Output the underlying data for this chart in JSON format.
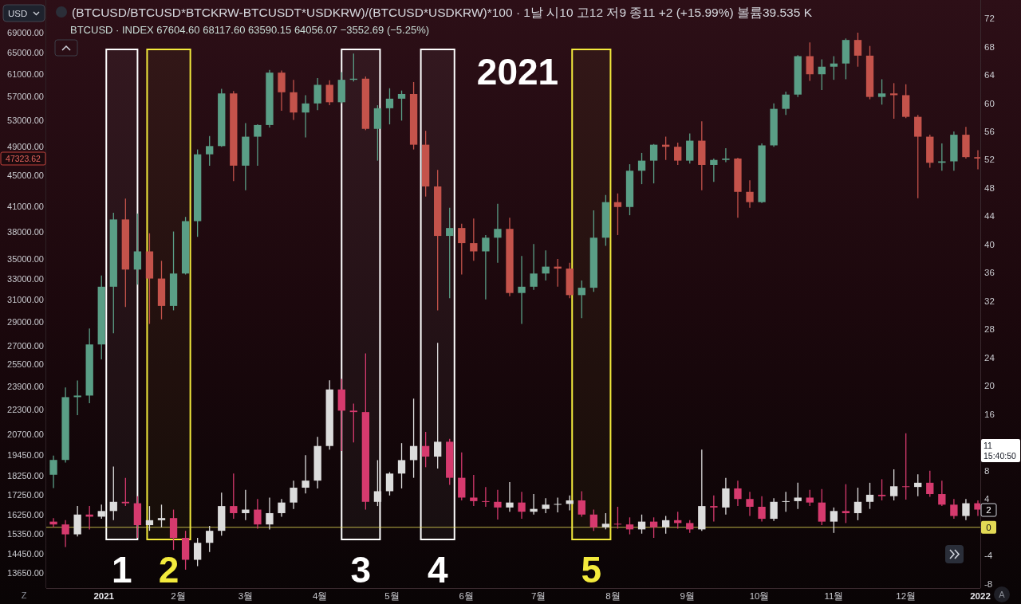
{
  "chart_data": {
    "type": "candlestick",
    "title": "(BTCUSD/BTCUSD*BTCKRW-BTCUSDT*USDKRW)/(BTCUSD*USDKRW)*100 · 1날 시10 고12 저9 종11 +2 (+15.99%) 볼륨39.535 K",
    "subtitle": "BTCUSD · INDEX 67604.60 68117.60 63590.15 64056.07 −3552.69 (−5.25%)",
    "x": [
      "2020-12-11",
      "2020-12-16",
      "2020-12-21",
      "2020-12-26",
      "2020-12-31",
      "2021-01-05",
      "2021-01-10",
      "2021-01-15",
      "2021-01-20",
      "2021-01-25",
      "2021-01-30",
      "2021-02-04",
      "2021-02-09",
      "2021-02-14",
      "2021-02-19",
      "2021-02-24",
      "2021-03-01",
      "2021-03-06",
      "2021-03-11",
      "2021-03-16",
      "2021-03-21",
      "2021-03-26",
      "2021-03-31",
      "2021-04-05",
      "2021-04-10",
      "2021-04-15",
      "2021-04-20",
      "2021-04-25",
      "2021-04-30",
      "2021-05-05",
      "2021-05-10",
      "2021-05-15",
      "2021-05-20",
      "2021-05-25",
      "2021-05-30",
      "2021-06-04",
      "2021-06-09",
      "2021-06-14",
      "2021-06-19",
      "2021-06-24",
      "2021-06-29",
      "2021-07-04",
      "2021-07-09",
      "2021-07-14",
      "2021-07-19",
      "2021-07-24",
      "2021-07-29",
      "2021-08-03",
      "2021-08-08",
      "2021-08-13",
      "2021-08-18",
      "2021-08-23",
      "2021-08-28",
      "2021-09-02",
      "2021-09-07",
      "2021-09-12",
      "2021-09-17",
      "2021-09-22",
      "2021-09-27",
      "2021-10-02",
      "2021-10-07",
      "2021-10-12",
      "2021-10-17",
      "2021-10-22",
      "2021-10-27",
      "2021-11-01",
      "2021-11-06",
      "2021-11-11",
      "2021-11-16",
      "2021-11-21",
      "2021-11-26",
      "2021-12-01",
      "2021-12-06",
      "2021-12-11",
      "2021-12-16",
      "2021-12-21",
      "2021-12-26",
      "2021-12-31"
    ],
    "series": [
      {
        "ohlc": [
          [
            18320,
            19400,
            17600,
            19150
          ],
          [
            19150,
            23800,
            19000,
            23120
          ],
          [
            23120,
            24300,
            21900,
            23230
          ],
          [
            23230,
            28400,
            22700,
            27080
          ],
          [
            27080,
            33300,
            25900,
            32200
          ],
          [
            32200,
            40200,
            28000,
            39400
          ],
          [
            39400,
            41950,
            30300,
            33900
          ],
          [
            33900,
            40100,
            32400,
            35800
          ],
          [
            35800,
            37800,
            28800,
            33000
          ],
          [
            33000,
            34800,
            29200,
            30400
          ],
          [
            30400,
            38000,
            30000,
            33500
          ],
          [
            33500,
            39700,
            33400,
            39200
          ],
          [
            39200,
            48600,
            37400,
            47900
          ],
          [
            47900,
            50600,
            46300,
            49100
          ],
          [
            49100,
            58300,
            49000,
            57500
          ],
          [
            57500,
            57900,
            44200,
            46300
          ],
          [
            46300,
            52600,
            43000,
            50500
          ],
          [
            50500,
            52400,
            46300,
            52300
          ],
          [
            52300,
            61700,
            51900,
            61200
          ],
          [
            61200,
            61600,
            54600,
            57700
          ],
          [
            57700,
            59900,
            53100,
            54300
          ],
          [
            54300,
            57200,
            50400,
            55800
          ],
          [
            55800,
            60200,
            54700,
            59000
          ],
          [
            59000,
            59800,
            55500,
            56000
          ],
          [
            56000,
            61300,
            55800,
            59900
          ],
          [
            59900,
            64800,
            59600,
            60100
          ],
          [
            60100,
            60500,
            51500,
            51700
          ],
          [
            51700,
            55500,
            47000,
            55000
          ],
          [
            55000,
            58400,
            52400,
            56600
          ],
          [
            56600,
            58000,
            53000,
            57400
          ],
          [
            57400,
            59500,
            48600,
            49300
          ],
          [
            49300,
            51400,
            42200,
            43500
          ],
          [
            43500,
            45700,
            30000,
            37500
          ],
          [
            37500,
            40800,
            31100,
            38400
          ],
          [
            38400,
            38900,
            33400,
            36700
          ],
          [
            36700,
            39500,
            34800,
            35800
          ],
          [
            35800,
            37600,
            31000,
            37300
          ],
          [
            37300,
            41300,
            34600,
            38300
          ],
          [
            38300,
            39600,
            31300,
            31600
          ],
          [
            31600,
            35300,
            28800,
            32200
          ],
          [
            32200,
            36600,
            31900,
            33500
          ],
          [
            33500,
            35900,
            32800,
            34200
          ],
          [
            34200,
            35000,
            32200,
            34000
          ],
          [
            34000,
            34600,
            31100,
            31400
          ],
          [
            31400,
            32800,
            29300,
            32100
          ],
          [
            32100,
            40500,
            31700,
            37300
          ],
          [
            37300,
            42400,
            36400,
            41500
          ],
          [
            41500,
            42600,
            37600,
            40900
          ],
          [
            40900,
            46500,
            39900,
            45600
          ],
          [
            45600,
            48100,
            43800,
            47000
          ],
          [
            47000,
            49400,
            43900,
            49300
          ],
          [
            49300,
            50500,
            47100,
            49000
          ],
          [
            49000,
            49600,
            46400,
            47000
          ],
          [
            47000,
            51000,
            46600,
            49900
          ],
          [
            49900,
            52900,
            43000,
            46400
          ],
          [
            46400,
            47300,
            44100,
            47100
          ],
          [
            47100,
            48800,
            46800,
            47300
          ],
          [
            47300,
            47400,
            39600,
            42800
          ],
          [
            42800,
            44300,
            40800,
            41500
          ],
          [
            41500,
            49500,
            41400,
            49200
          ],
          [
            49200,
            55800,
            49000,
            54900
          ],
          [
            54900,
            57800,
            53900,
            57300
          ],
          [
            57300,
            64500,
            56900,
            64300
          ],
          [
            64300,
            67000,
            59700,
            60900
          ],
          [
            60900,
            63700,
            58100,
            62300
          ],
          [
            62300,
            64300,
            59900,
            62900
          ],
          [
            62900,
            67800,
            60000,
            67500
          ],
          [
            67500,
            69000,
            62300,
            64400
          ],
          [
            64400,
            66300,
            56500,
            56900
          ],
          [
            56900,
            60000,
            55600,
            57500
          ],
          [
            57500,
            59300,
            53300,
            57200
          ],
          [
            57200,
            59100,
            53400,
            53600
          ],
          [
            53600,
            53900,
            42000,
            50500
          ],
          [
            50500,
            50800,
            46000,
            46700
          ],
          [
            46700,
            49500,
            45600,
            46900
          ],
          [
            46900,
            51300,
            45600,
            50800
          ],
          [
            50800,
            52000,
            47300,
            47500
          ],
          [
            47500,
            48500,
            45800,
            47300
          ]
        ],
        "colors": [
          "#5a9e86",
          "#5a9e86",
          "#5a9e86",
          "#5a9e86",
          "#5a9e86",
          "#5a9e86",
          "#c4534b",
          "#5a9e86",
          "#c4534b",
          "#c4534b",
          "#5a9e86",
          "#5a9e86",
          "#5a9e86",
          "#5a9e86",
          "#5a9e86",
          "#c4534b",
          "#5a9e86",
          "#5a9e86",
          "#5a9e86",
          "#c4534b",
          "#c4534b",
          "#5a9e86",
          "#5a9e86",
          "#c4534b",
          "#5a9e86",
          "#5a9e86",
          "#c4534b",
          "#5a9e86",
          "#5a9e86",
          "#5a9e86",
          "#c4534b",
          "#c4534b",
          "#c4534b",
          "#5a9e86",
          "#c4534b",
          "#c4534b",
          "#5a9e86",
          "#5a9e86",
          "#c4534b",
          "#5a9e86",
          "#5a9e86",
          "#5a9e86",
          "#c4534b",
          "#c4534b",
          "#5a9e86",
          "#5a9e86",
          "#5a9e86",
          "#c4534b",
          "#5a9e86",
          "#5a9e86",
          "#5a9e86",
          "#c4534b",
          "#c4534b",
          "#5a9e86",
          "#c4534b",
          "#5a9e86",
          "#5a9e86",
          "#c4534b",
          "#c4534b",
          "#5a9e86",
          "#5a9e86",
          "#5a9e86",
          "#5a9e86",
          "#c4534b",
          "#5a9e86",
          "#5a9e86",
          "#5a9e86",
          "#c4534b",
          "#c4534b",
          "#5a9e86",
          "#c4534b",
          "#c4534b",
          "#c4534b",
          "#c4534b",
          "#5a9e86",
          "#5a9e86",
          "#c4534b",
          "#c4534b"
        ]
      },
      {
        "axis": "y2",
        "ohlc": [
          [
            0.8,
            1.3,
            0.0,
            0.4
          ],
          [
            0.4,
            1.0,
            -2.8,
            -1.0
          ],
          [
            -1.0,
            3.0,
            -1.3,
            1.8
          ],
          [
            1.8,
            3.0,
            -0.3,
            1.5
          ],
          [
            1.5,
            3.2,
            1.2,
            2.3
          ],
          [
            2.3,
            8.6,
            1.0,
            3.6
          ],
          [
            3.6,
            7.0,
            3.0,
            3.4
          ],
          [
            3.4,
            4.4,
            -1.5,
            0.3
          ],
          [
            0.3,
            3.0,
            -0.5,
            1.0
          ],
          [
            1.0,
            3.2,
            0.0,
            1.3
          ],
          [
            1.3,
            2.5,
            -3.2,
            -1.5
          ],
          [
            -1.5,
            -0.5,
            -6.0,
            -4.6
          ],
          [
            -4.6,
            -1.5,
            -5.5,
            -2.2
          ],
          [
            -2.2,
            0.2,
            -3.5,
            -0.5
          ],
          [
            -0.5,
            4.9,
            -1.2,
            3.0
          ],
          [
            3.0,
            7.6,
            1.2,
            2.0
          ],
          [
            2.0,
            5.3,
            1.0,
            2.5
          ],
          [
            2.5,
            4.0,
            -0.2,
            0.4
          ],
          [
            0.4,
            4.2,
            -0.3,
            2.0
          ],
          [
            2.0,
            4.0,
            1.5,
            3.5
          ],
          [
            3.5,
            6.6,
            2.6,
            5.6
          ],
          [
            5.6,
            10.2,
            4.8,
            6.6
          ],
          [
            6.6,
            12.8,
            5.5,
            11.5
          ],
          [
            11.5,
            20.8,
            11.0,
            19.5
          ],
          [
            19.5,
            21.0,
            10.8,
            16.5
          ],
          [
            16.5,
            17.5,
            12.0,
            16.3
          ],
          [
            16.3,
            24.6,
            2.5,
            3.6
          ],
          [
            3.6,
            9.5,
            3.0,
            5.1
          ],
          [
            5.1,
            7.8,
            4.5,
            7.6
          ],
          [
            7.6,
            11.9,
            5.5,
            9.5
          ],
          [
            9.5,
            18.2,
            7.0,
            11.5
          ],
          [
            11.5,
            13.5,
            8.5,
            10.0
          ],
          [
            10.0,
            26.1,
            8.3,
            12.1
          ],
          [
            12.1,
            12.5,
            6.0,
            7.0
          ],
          [
            7.0,
            10.6,
            3.8,
            4.2
          ],
          [
            4.2,
            7.4,
            3.0,
            3.7
          ],
          [
            3.7,
            5.7,
            2.9,
            3.6
          ],
          [
            3.6,
            5.3,
            1.1,
            2.8
          ],
          [
            2.8,
            6.4,
            2.2,
            3.5
          ],
          [
            3.5,
            5.0,
            1.2,
            2.2
          ],
          [
            2.2,
            4.7,
            1.8,
            2.6
          ],
          [
            2.6,
            4.1,
            2.0,
            3.2
          ],
          [
            3.2,
            4.2,
            2.1,
            3.3
          ],
          [
            3.3,
            4.5,
            2.4,
            3.8
          ],
          [
            3.8,
            5.1,
            1.5,
            1.8
          ],
          [
            1.8,
            2.5,
            -0.5,
            0.0
          ],
          [
            0.0,
            2.0,
            -0.3,
            0.5
          ],
          [
            0.5,
            2.9,
            -0.2,
            0.4
          ],
          [
            0.4,
            1.4,
            -1.0,
            -0.3
          ],
          [
            -0.3,
            1.8,
            -0.9,
            0.8
          ],
          [
            0.8,
            1.4,
            -1.5,
            0.0
          ],
          [
            0.0,
            1.6,
            -0.9,
            1.0
          ],
          [
            1.0,
            2.2,
            -0.2,
            0.6
          ],
          [
            0.6,
            1.0,
            -0.8,
            -0.3
          ],
          [
            -0.3,
            11.0,
            -0.5,
            3.0
          ],
          [
            3.0,
            4.5,
            0.8,
            2.8
          ],
          [
            2.8,
            7.0,
            1.8,
            5.5
          ],
          [
            5.5,
            6.6,
            3.0,
            4.0
          ],
          [
            4.0,
            5.0,
            1.6,
            2.9
          ],
          [
            2.9,
            4.4,
            0.8,
            1.2
          ],
          [
            1.2,
            4.1,
            0.9,
            3.6
          ],
          [
            3.6,
            5.0,
            2.2,
            3.7
          ],
          [
            3.7,
            6.3,
            2.6,
            4.2
          ],
          [
            4.2,
            5.3,
            3.0,
            3.5
          ],
          [
            3.5,
            5.4,
            0.3,
            0.8
          ],
          [
            0.8,
            2.8,
            -0.8,
            2.3
          ],
          [
            2.3,
            6.1,
            0.6,
            2.0
          ],
          [
            2.0,
            5.6,
            1.0,
            3.6
          ],
          [
            3.6,
            6.3,
            2.6,
            4.6
          ],
          [
            4.6,
            6.8,
            3.8,
            4.4
          ],
          [
            4.4,
            8.2,
            3.8,
            5.8
          ],
          [
            5.8,
            13.3,
            3.9,
            5.7
          ],
          [
            5.7,
            7.5,
            4.4,
            6.3
          ],
          [
            6.3,
            8.0,
            4.3,
            4.7
          ],
          [
            4.7,
            6.6,
            3.0,
            3.2
          ],
          [
            3.2,
            4.0,
            1.2,
            1.6
          ],
          [
            1.6,
            4.0,
            1.0,
            3.4
          ],
          [
            3.4,
            3.8,
            1.6,
            2.5
          ]
        ],
        "colors": [
          "#d63a6e",
          "#d63a6e",
          "#dcdcdc",
          "#d63a6e",
          "#dcdcdc",
          "#dcdcdc",
          "#d63a6e",
          "#d63a6e",
          "#dcdcdc",
          "#dcdcdc",
          "#d63a6e",
          "#d63a6e",
          "#dcdcdc",
          "#dcdcdc",
          "#dcdcdc",
          "#d63a6e",
          "#dcdcdc",
          "#d63a6e",
          "#dcdcdc",
          "#dcdcdc",
          "#dcdcdc",
          "#dcdcdc",
          "#dcdcdc",
          "#dcdcdc",
          "#d63a6e",
          "#d63a6e",
          "#d63a6e",
          "#dcdcdc",
          "#dcdcdc",
          "#dcdcdc",
          "#dcdcdc",
          "#d63a6e",
          "#dcdcdc",
          "#d63a6e",
          "#d63a6e",
          "#d63a6e",
          "#d63a6e",
          "#d63a6e",
          "#dcdcdc",
          "#d63a6e",
          "#dcdcdc",
          "#dcdcdc",
          "#dcdcdc",
          "#dcdcdc",
          "#d63a6e",
          "#d63a6e",
          "#dcdcdc",
          "#d63a6e",
          "#d63a6e",
          "#dcdcdc",
          "#d63a6e",
          "#dcdcdc",
          "#d63a6e",
          "#d63a6e",
          "#dcdcdc",
          "#d63a6e",
          "#dcdcdc",
          "#d63a6e",
          "#d63a6e",
          "#d63a6e",
          "#dcdcdc",
          "#dcdcdc",
          "#dcdcdc",
          "#d63a6e",
          "#d63a6e",
          "#dcdcdc",
          "#d63a6e",
          "#dcdcdc",
          "#dcdcdc",
          "#d63a6e",
          "#dcdcdc",
          "#d63a6e",
          "#dcdcdc",
          "#d63a6e",
          "#d63a6e",
          "#d63a6e",
          "#dcdcdc",
          "#d63a6e"
        ]
      }
    ],
    "xlim": [
      "2020-12-08",
      "2022-01-01"
    ],
    "xticks": [
      {
        "value": "2021-01-01",
        "label": "2021"
      },
      {
        "value": "2021-02-01",
        "label": "2월"
      },
      {
        "value": "2021-03-01",
        "label": "3월"
      },
      {
        "value": "2021-04-01",
        "label": "4월"
      },
      {
        "value": "2021-05-01",
        "label": "5월"
      },
      {
        "value": "2021-06-01",
        "label": "6월"
      },
      {
        "value": "2021-07-01",
        "label": "7월"
      },
      {
        "value": "2021-08-01",
        "label": "8월"
      },
      {
        "value": "2021-09-01",
        "label": "9월"
      },
      {
        "value": "2021-10-01",
        "label": "10월"
      },
      {
        "value": "2021-11-01",
        "label": "11월"
      },
      {
        "value": "2021-12-01",
        "label": "12월"
      },
      {
        "value": "2022-01-01",
        "label": "2022"
      }
    ],
    "log": "y",
    "ylim": [
      13040,
      76100
    ],
    "yticks": [
      {
        "value": 13650,
        "label": "13650.00"
      },
      {
        "value": 14450,
        "label": "14450.00"
      },
      {
        "value": 15350,
        "label": "15350.00"
      },
      {
        "value": 16250,
        "label": "16250.00"
      },
      {
        "value": 17250,
        "label": "17250.00"
      },
      {
        "value": 18250,
        "label": "18250.00"
      },
      {
        "value": 19450,
        "label": "19450.00"
      },
      {
        "value": 20700,
        "label": "20700.00"
      },
      {
        "value": 22300,
        "label": "22300.00"
      },
      {
        "value": 23900,
        "label": "23900.00"
      },
      {
        "value": 25500,
        "label": "25500.00"
      },
      {
        "value": 27000,
        "label": "27000.00"
      },
      {
        "value": 29000,
        "label": "29000.00"
      },
      {
        "value": 31000,
        "label": "31000.00"
      },
      {
        "value": 33000,
        "label": "33000.00"
      },
      {
        "value": 35000,
        "label": "35000.00"
      },
      {
        "value": 38000,
        "label": "38000.00"
      },
      {
        "value": 41000,
        "label": "41000.00"
      },
      {
        "value": 45000,
        "label": "45000.00"
      },
      {
        "value": 49000,
        "label": "49000.00"
      },
      {
        "value": 53000,
        "label": "53000.00"
      },
      {
        "value": 57000,
        "label": "57000.00"
      },
      {
        "value": 61000,
        "label": "61000.00"
      },
      {
        "value": 65000,
        "label": "65000.00"
      },
      {
        "value": 69000,
        "label": "69000.00"
      }
    ],
    "y2lim": [
      -8.6,
      74.6
    ],
    "y2ticks": [
      -8,
      -4,
      4,
      8,
      16,
      20,
      24,
      28,
      32,
      36,
      40,
      44,
      48,
      52,
      56,
      60,
      64,
      68,
      72
    ],
    "ref_lines": [
      {
        "axis": "y2",
        "value": 0,
        "label": "0",
        "color": "#e3da55"
      }
    ],
    "bands": [
      {
        "axis": "x",
        "from": "2021-01-02",
        "to": "2021-01-15",
        "label": "1",
        "color": "#ffffff"
      },
      {
        "axis": "x",
        "from": "2021-01-19",
        "to": "2021-02-06",
        "label": "2",
        "color": "#f3ea3c"
      },
      {
        "axis": "x",
        "from": "2021-04-10",
        "to": "2021-04-26",
        "label": "3",
        "color": "#ffffff"
      },
      {
        "axis": "x",
        "from": "2021-05-13",
        "to": "2021-05-27",
        "label": "4",
        "color": "#ffffff"
      },
      {
        "axis": "x",
        "from": "2021-07-15",
        "to": "2021-07-31",
        "label": "5",
        "color": "#f3ea3c"
      }
    ],
    "annotations": [
      "2021",
      "47323.62",
      "11\n15:40:50",
      "2",
      "USD",
      "Z",
      "A"
    ]
  }
}
